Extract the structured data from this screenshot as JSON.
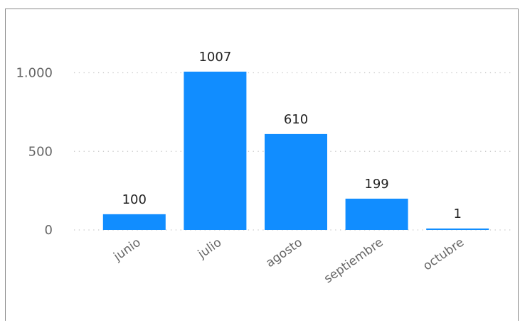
{
  "chart_data": {
    "type": "bar",
    "title": "",
    "xlabel": "",
    "ylabel": "",
    "categories": [
      "junio",
      "julio",
      "agosto",
      "septiembre",
      "octubre"
    ],
    "values": [
      100,
      1007,
      610,
      199,
      1
    ],
    "data_labels": [
      "100",
      "1007",
      "610",
      "199",
      "1"
    ],
    "ylim": [
      0,
      1150
    ],
    "yticks": [
      {
        "value": 0,
        "label": "0"
      },
      {
        "value": 500,
        "label": "500"
      },
      {
        "value": 1000,
        "label": "1.000"
      }
    ],
    "grid": true,
    "gridline_style": "dotted",
    "x_label_rotation_deg": -35,
    "bar_color": "#118DFF",
    "legend": "none"
  }
}
